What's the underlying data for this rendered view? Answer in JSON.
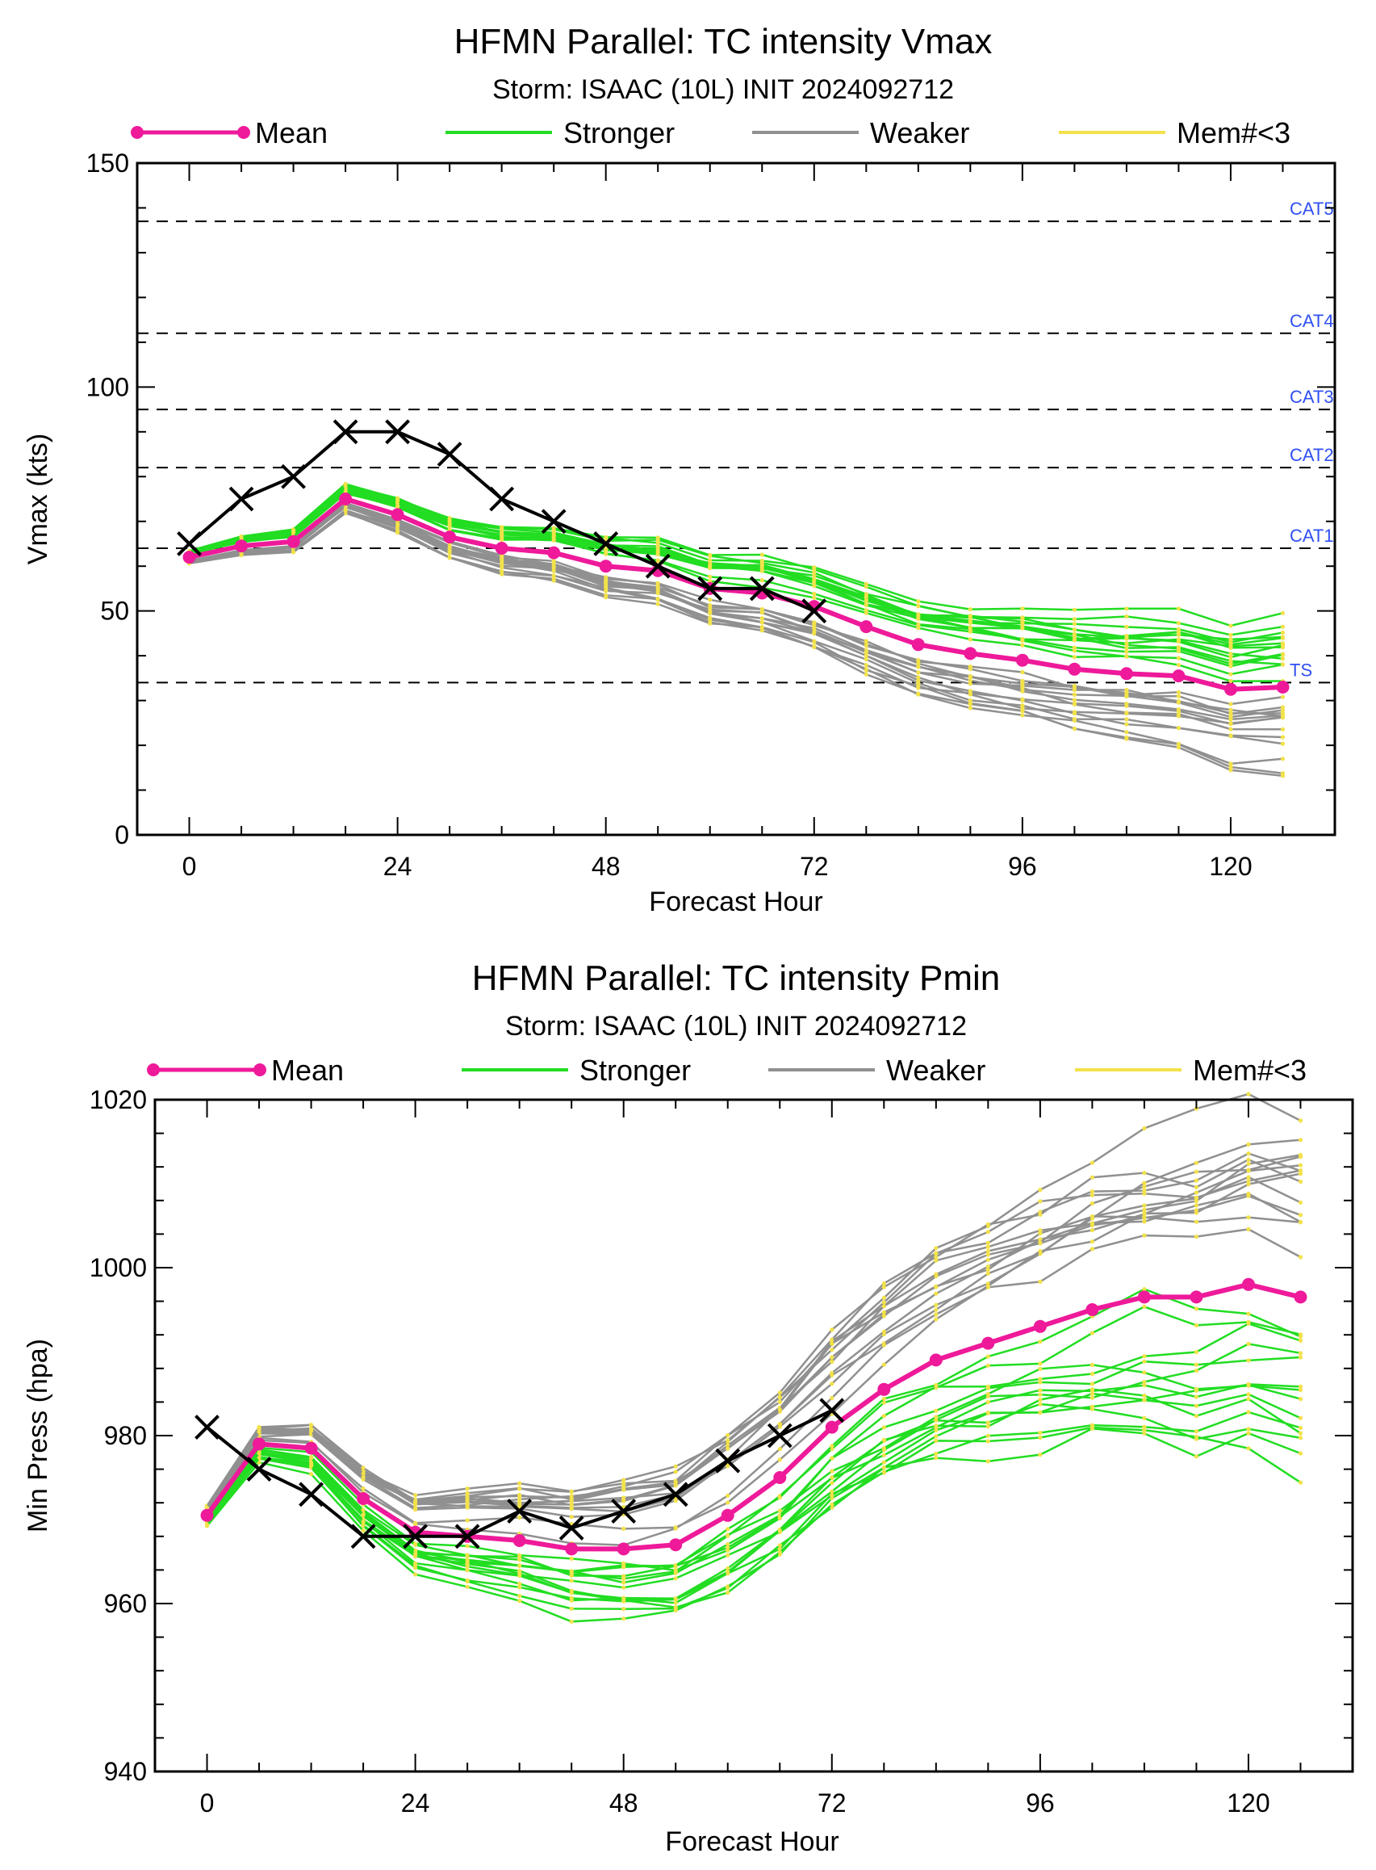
{
  "colors": {
    "mean": "#ee1a9a",
    "stronger": "#22dd22",
    "weaker": "#909090",
    "mem3": "#f2e24a",
    "obs": "#000000",
    "cat": "#3050f0"
  },
  "chart_data": [
    {
      "type": "line",
      "title": "HFMN Parallel: TC intensity Vmax",
      "subtitle": "Storm: ISAAC (10L) INIT 2024092712",
      "xlabel": "Forecast Hour",
      "ylabel": "Vmax (kts)",
      "xlim": [
        -6,
        132
      ],
      "ylim": [
        0,
        150
      ],
      "xticks": [
        0,
        24,
        48,
        72,
        96,
        120
      ],
      "yticks": [
        0,
        50,
        100,
        150
      ],
      "legend": [
        "Mean",
        "Stronger",
        "Weaker",
        "Mem#<3"
      ],
      "legend_placement": "top",
      "reference_lines": [
        {
          "label": "TS",
          "value": 34
        },
        {
          "label": "CAT1",
          "value": 64
        },
        {
          "label": "CAT2",
          "value": 82
        },
        {
          "label": "CAT3",
          "value": 95
        },
        {
          "label": "CAT4",
          "value": 112
        },
        {
          "label": "CAT5",
          "value": 137
        }
      ],
      "hours": [
        0,
        6,
        12,
        18,
        24,
        30,
        36,
        42,
        48,
        54,
        60,
        66,
        72,
        78,
        84,
        90,
        96,
        102,
        108,
        114,
        120,
        126
      ],
      "mean": [
        62,
        64.5,
        65.5,
        75,
        71.5,
        66.5,
        64,
        63,
        60,
        59,
        55,
        54,
        51,
        46.5,
        42.5,
        40.5,
        39,
        37,
        36,
        35.5,
        32.5,
        33
      ],
      "observed": {
        "hours": [
          0,
          6,
          12,
          18,
          24,
          30,
          36,
          42,
          48,
          54,
          60,
          66,
          72
        ],
        "values": [
          65,
          75,
          80,
          90,
          90,
          85,
          75,
          70,
          65,
          60,
          55,
          55,
          50
        ]
      }
    },
    {
      "type": "line",
      "title": "HFMN Parallel: TC intensity Pmin",
      "subtitle": "Storm: ISAAC (10L) INIT 2024092712",
      "xlabel": "Forecast Hour",
      "ylabel": "Min Press (hpa)",
      "xlim": [
        -6,
        132
      ],
      "ylim": [
        940,
        1020
      ],
      "xticks": [
        0,
        24,
        48,
        72,
        96,
        120
      ],
      "yticks": [
        940,
        960,
        980,
        1000,
        1020
      ],
      "legend": [
        "Mean",
        "Stronger",
        "Weaker",
        "Mem#<3"
      ],
      "legend_placement": "top",
      "hours": [
        0,
        6,
        12,
        18,
        24,
        30,
        36,
        42,
        48,
        54,
        60,
        66,
        72,
        78,
        84,
        90,
        96,
        102,
        108,
        114,
        120,
        126
      ],
      "mean": [
        970.5,
        979,
        978.5,
        972.5,
        968.5,
        968,
        967.5,
        966.5,
        966.5,
        967,
        970.5,
        975,
        981,
        985.5,
        989,
        991,
        993,
        995,
        996.5,
        996.5,
        998,
        996.5
      ],
      "observed": {
        "hours": [
          0,
          6,
          12,
          18,
          24,
          30,
          36,
          42,
          48,
          54,
          60,
          66,
          72
        ],
        "values": [
          981,
          976,
          973,
          968,
          968,
          968,
          971,
          969,
          971,
          973,
          977,
          980,
          983
        ]
      }
    }
  ]
}
